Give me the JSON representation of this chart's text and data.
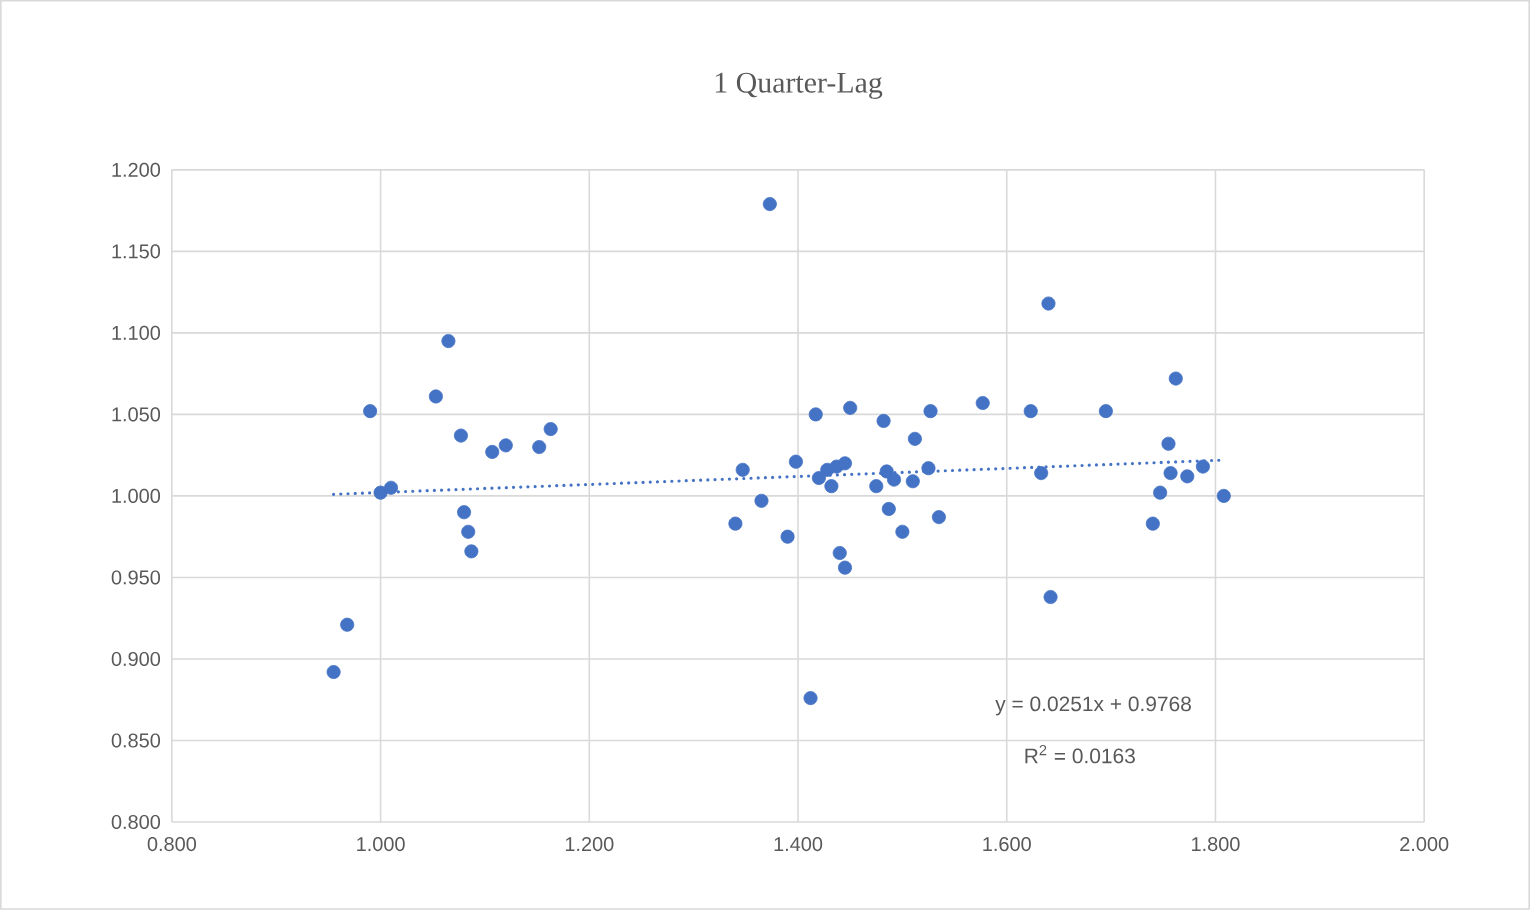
{
  "chart_data": {
    "type": "scatter",
    "title": "1 Quarter-Lag",
    "series": [
      {
        "color": "#4472c4",
        "marker": "circle",
        "x": [
          0.955,
          0.968,
          0.99,
          1.0,
          1.01,
          1.053,
          1.065,
          1.077,
          1.08,
          1.084,
          1.087,
          1.107,
          1.12,
          1.152,
          1.163,
          1.34,
          1.347,
          1.365,
          1.373,
          1.39,
          1.398,
          1.412,
          1.417,
          1.42,
          1.428,
          1.432,
          1.437,
          1.44,
          1.445,
          1.445,
          1.45,
          1.475,
          1.482,
          1.485,
          1.487,
          1.492,
          1.5,
          1.51,
          1.512,
          1.525,
          1.527,
          1.535,
          1.577,
          1.623,
          1.633,
          1.64,
          1.642,
          1.695,
          1.74,
          1.747,
          1.755,
          1.757,
          1.762,
          1.773,
          1.788,
          1.808
        ],
        "values": [
          0.892,
          0.921,
          1.052,
          1.002,
          1.005,
          1.061,
          1.095,
          1.037,
          0.99,
          0.978,
          0.966,
          1.027,
          1.031,
          1.03,
          1.041,
          0.983,
          1.016,
          0.997,
          1.179,
          0.975,
          1.021,
          0.876,
          1.05,
          1.011,
          1.016,
          1.006,
          1.018,
          0.965,
          0.956,
          1.02,
          1.054,
          1.006,
          1.046,
          1.015,
          0.992,
          1.01,
          0.978,
          1.009,
          1.035,
          1.017,
          1.052,
          0.987,
          1.057,
          1.052,
          1.014,
          1.118,
          0.938,
          1.052,
          0.983,
          1.002,
          1.032,
          1.014,
          1.072,
          1.012,
          1.018,
          1.0
        ]
      },
      {
        "type": "line",
        "color": "#4472c4",
        "line_style": "dotted",
        "marker": "none",
        "x": [
          0.955,
          1.808
        ],
        "values": [
          1.001,
          1.022
        ]
      }
    ],
    "xlim": [
      0.8,
      2.0
    ],
    "xticks": [
      {
        "value": 0.8,
        "label": "0.800"
      },
      {
        "value": 1.0,
        "label": "1.000"
      },
      {
        "value": 1.2,
        "label": "1.200"
      },
      {
        "value": 1.4,
        "label": "1.400"
      },
      {
        "value": 1.6,
        "label": "1.600"
      },
      {
        "value": 1.8,
        "label": "1.800"
      },
      {
        "value": 2.0,
        "label": "2.000"
      }
    ],
    "ylim": [
      0.8,
      1.2
    ],
    "yticks": [
      {
        "value": 0.8,
        "label": "0.800"
      },
      {
        "value": 0.85,
        "label": "0.850"
      },
      {
        "value": 0.9,
        "label": "0.900"
      },
      {
        "value": 0.95,
        "label": "0.950"
      },
      {
        "value": 1.0,
        "label": "1.000"
      },
      {
        "value": 1.05,
        "label": "1.050"
      },
      {
        "value": 1.1,
        "label": "1.100"
      },
      {
        "value": 1.15,
        "label": "1.150"
      },
      {
        "value": 1.2,
        "label": "1.200"
      }
    ],
    "grid": true,
    "annotations": [
      "y = 0.0251x  + 0.9768",
      "R$^{2}$ = 0.0163"
    ]
  }
}
